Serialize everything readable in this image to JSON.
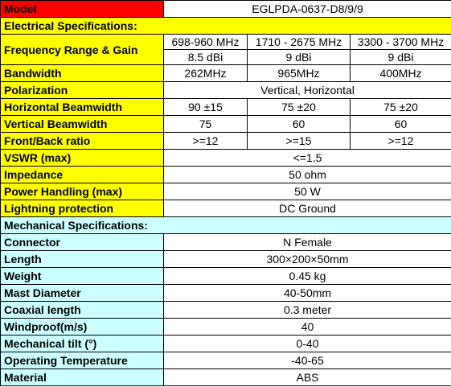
{
  "model": {
    "label": "Model",
    "value": "EGLPDA-0637-D8/9/9"
  },
  "electrical": {
    "title": "Electrical Specifications:",
    "freq_label": "Frequency Range & Gain",
    "bands": [
      "698-960 MHz",
      "1710 - 2675 MHz",
      "3300 - 3700 MHz"
    ],
    "gains": [
      "8.5 dBi",
      "9 dBi",
      "9 dBi"
    ],
    "bandwidth": {
      "label": "Bandwidth",
      "values": [
        "262MHz",
        "965MHz",
        "400MHz"
      ]
    },
    "polarization": {
      "label": "Polarization",
      "value": "Vertical, Horizontal"
    },
    "h_beam": {
      "label": "Horizontal Beamwidth",
      "values": [
        "90 ±15",
        "75 ±20",
        "75 ±20"
      ]
    },
    "v_beam": {
      "label": "Vertical Beamwidth",
      "values": [
        "75",
        "60",
        "60"
      ]
    },
    "fb_ratio": {
      "label": "Front/Back ratio",
      "values": [
        ">=12",
        ">=15",
        ">=12"
      ]
    },
    "vswr": {
      "label": "VSWR (max)",
      "value": "<=1.5"
    },
    "impedance": {
      "label": "Impedance",
      "value": "50 ohm"
    },
    "power": {
      "label": "Power Handling (max)",
      "value": "50 W"
    },
    "lightning": {
      "label": "Lightning protection",
      "value": "DC Ground"
    }
  },
  "mechanical": {
    "title": "Mechanical Specifications:",
    "rows": [
      {
        "label": "Connector",
        "value": "N Female"
      },
      {
        "label": "Length",
        "value": "300×200×50mm"
      },
      {
        "label": "Weight",
        "value": "0.45 kg"
      },
      {
        "label": "Mast Diameter",
        "value": "40-50mm"
      },
      {
        "label": "Coaxial length",
        "value": "0.3 meter"
      },
      {
        "label": "Windproof(m/s)",
        "value": "40"
      },
      {
        "label": "Mechanical tilt (°)",
        "value": "0-40"
      },
      {
        "label": "Operating Temperature",
        "value": "-40-65"
      },
      {
        "label": "Material",
        "value": "ABS"
      }
    ]
  },
  "colors": {
    "label_yellow": "#ffff00",
    "label_cyan": "#ccffff",
    "model_red": "#ff0000"
  }
}
